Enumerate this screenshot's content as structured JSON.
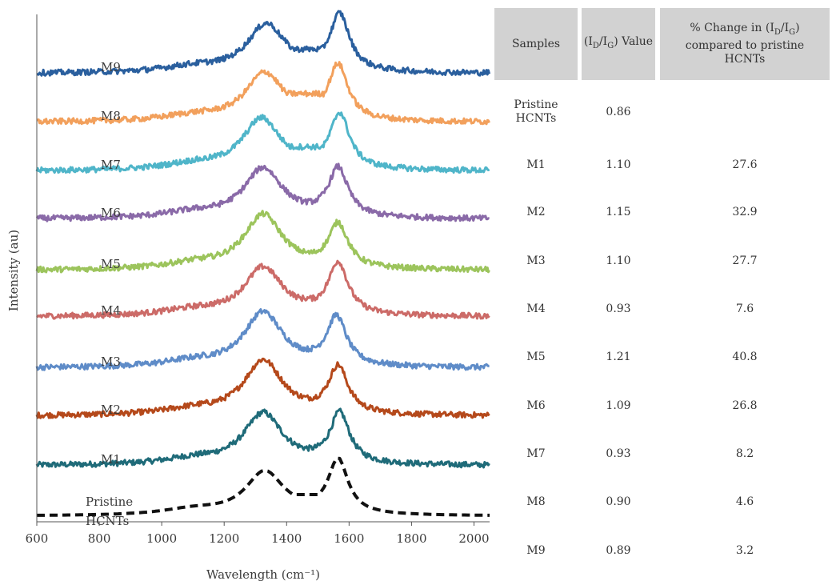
{
  "chart_data": {
    "type": "line",
    "xlabel": "Wavelength (cm⁻¹)",
    "ylabel": "Intensity (au)",
    "xlim": [
      600,
      2050
    ],
    "xticks": [
      600,
      800,
      1000,
      1200,
      1400,
      1600,
      1800,
      2000
    ],
    "grid": false,
    "series": [
      {
        "name": "Pristine HCNTs",
        "color": "#111111",
        "dashed": true,
        "baseline": 0.5,
        "d_peak": 1330,
        "d_height": 2.7,
        "g_peak": 1565,
        "g_height": 3.4,
        "valley": 1.5
      },
      {
        "name": "M1",
        "color": "#1f6b79",
        "baseline": 1.5,
        "d_peak": 1325,
        "d_height": 3.2,
        "g_peak": 1570,
        "g_height": 3.1,
        "valley": 1.0
      },
      {
        "name": "M2",
        "color": "#b5491b",
        "baseline": 1.5,
        "d_peak": 1325,
        "d_height": 3.4,
        "g_peak": 1565,
        "g_height": 2.9,
        "valley": 0.8
      },
      {
        "name": "M3",
        "color": "#5f8cc8",
        "baseline": 1.5,
        "d_peak": 1325,
        "d_height": 3.4,
        "g_peak": 1560,
        "g_height": 3.0,
        "valley": 0.6
      },
      {
        "name": "M4",
        "color": "#cc6b68",
        "baseline": 1.5,
        "d_peak": 1325,
        "d_height": 3.0,
        "g_peak": 1565,
        "g_height": 3.2,
        "valley": 1.3
      },
      {
        "name": "M5",
        "color": "#9cc45c",
        "baseline": 1.5,
        "d_peak": 1325,
        "d_height": 3.4,
        "g_peak": 1565,
        "g_height": 2.7,
        "valley": 0.9
      },
      {
        "name": "M6",
        "color": "#8a6aa8",
        "baseline": 1.5,
        "d_peak": 1325,
        "d_height": 3.1,
        "g_peak": 1565,
        "g_height": 3.0,
        "valley": 1.2
      },
      {
        "name": "M7",
        "color": "#4fb5c9",
        "baseline": 1.5,
        "d_peak": 1320,
        "d_height": 3.2,
        "g_peak": 1570,
        "g_height": 3.4,
        "valley": 1.7
      },
      {
        "name": "M8",
        "color": "#f2a05c",
        "baseline": 1.5,
        "d_peak": 1330,
        "d_height": 3.0,
        "g_peak": 1565,
        "g_height": 3.4,
        "valley": 2.0
      },
      {
        "name": "M9",
        "color": "#2a5f9e",
        "baseline": 1.5,
        "d_peak": 1335,
        "d_height": 3.0,
        "g_peak": 1570,
        "g_height": 3.5,
        "valley": 1.7
      }
    ]
  },
  "table": {
    "headers": [
      "Samples",
      "(I_D/I_G) Value",
      "% Change in (I_D/I_G) compared to pristine HCNTs"
    ],
    "rows": [
      {
        "sample": "Pristine HCNTs",
        "value": "0.86",
        "change": ""
      },
      {
        "sample": "M1",
        "value": "1.10",
        "change": "27.6"
      },
      {
        "sample": "M2",
        "value": "1.15",
        "change": "32.9"
      },
      {
        "sample": "M3",
        "value": "1.10",
        "change": "27.7"
      },
      {
        "sample": "M4",
        "value": "0.93",
        "change": "7.6"
      },
      {
        "sample": "M5",
        "value": "1.21",
        "change": "40.8"
      },
      {
        "sample": "M6",
        "value": "1.09",
        "change": "26.8"
      },
      {
        "sample": "M7",
        "value": "0.93",
        "change": "8.2"
      },
      {
        "sample": "M8",
        "value": "0.90",
        "change": "4.6"
      },
      {
        "sample": "M9",
        "value": "0.89",
        "change": "3.2"
      }
    ]
  }
}
